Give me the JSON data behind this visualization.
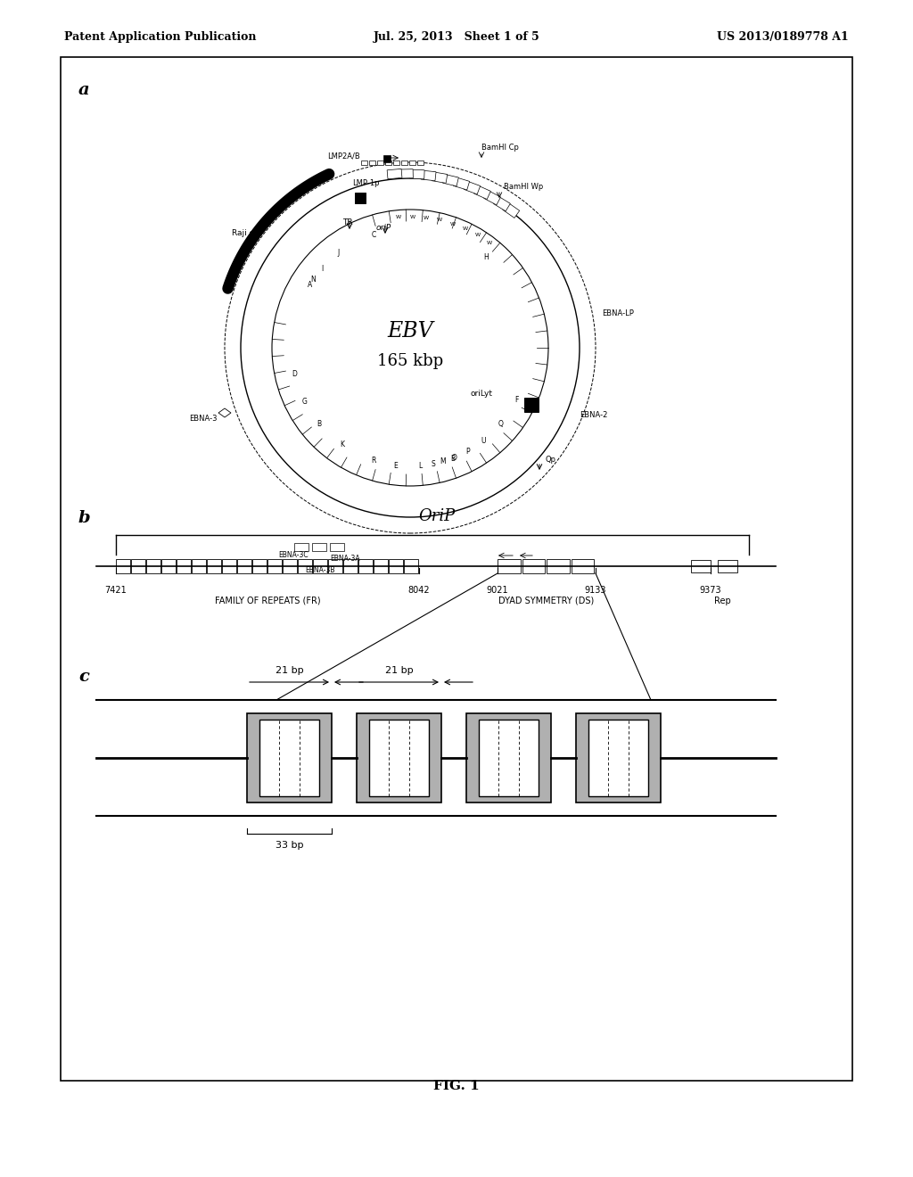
{
  "title_left": "Patent Application Publication",
  "title_center": "Jul. 25, 2013   Sheet 1 of 5",
  "title_right": "US 2013/0189778 A1",
  "fig_label": "FIG. 1",
  "panel_a_label": "a",
  "panel_b_label": "b",
  "panel_c_label": "c",
  "ebv_text": "EBV",
  "ebv_kbp": "165 kbp",
  "orip_title": "OriP",
  "fr_label": "FAMILY OF REPEATS (FR)",
  "ds_label": "DYAD SYMMETRY (DS)",
  "rep_label": "Rep",
  "coords": [
    "7421",
    "8042",
    "9021",
    "9133",
    "9373"
  ],
  "bp_21_1": "21 bp",
  "bp_21_2": "21 bp",
  "bp_33": "33 bp",
  "bg_color": "#ffffff"
}
